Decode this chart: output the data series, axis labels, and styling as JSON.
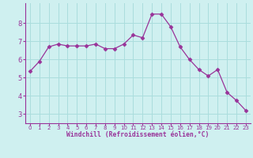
{
  "x": [
    0,
    1,
    2,
    3,
    4,
    5,
    6,
    7,
    8,
    9,
    10,
    11,
    12,
    13,
    14,
    15,
    16,
    17,
    18,
    19,
    20,
    21,
    22,
    23
  ],
  "y": [
    5.35,
    5.9,
    6.7,
    6.85,
    6.75,
    6.75,
    6.75,
    6.85,
    6.6,
    6.6,
    6.85,
    7.35,
    7.2,
    8.5,
    8.5,
    7.8,
    6.7,
    6.0,
    5.45,
    5.1,
    5.45,
    4.2,
    3.75,
    3.2
  ],
  "line_color": "#993399",
  "marker": "D",
  "marker_size": 2.5,
  "bg_color": "#cff0f0",
  "grid_color": "#aadddd",
  "xlabel": "Windchill (Refroidissement éolien,°C)",
  "xlabel_color": "#993399",
  "tick_color": "#993399",
  "spine_color": "#993399",
  "ylim": [
    2.5,
    9.1
  ],
  "yticks": [
    3,
    4,
    5,
    6,
    7,
    8
  ],
  "xlim": [
    -0.5,
    23.5
  ],
  "xticks": [
    0,
    1,
    2,
    3,
    4,
    5,
    6,
    7,
    8,
    9,
    10,
    11,
    12,
    13,
    14,
    15,
    16,
    17,
    18,
    19,
    20,
    21,
    22,
    23
  ]
}
